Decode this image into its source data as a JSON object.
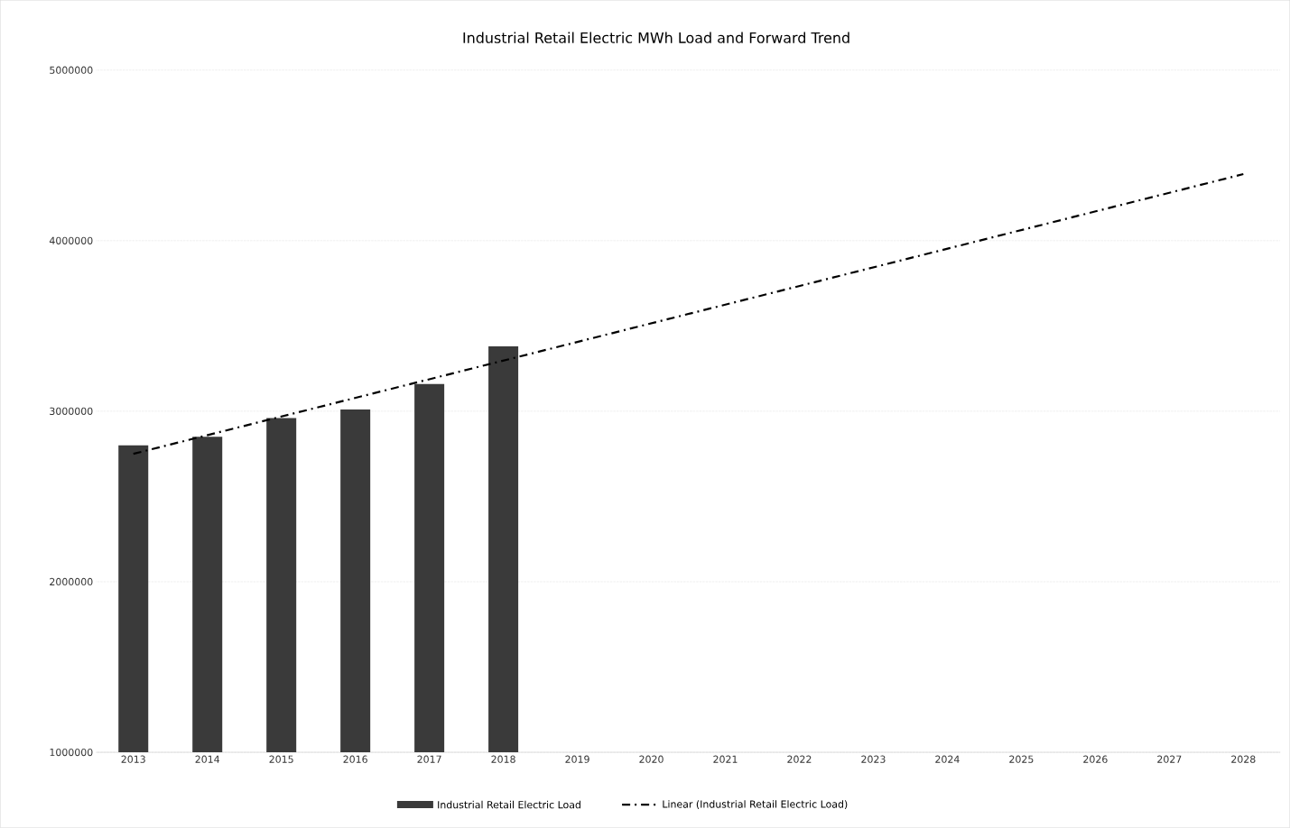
{
  "chart_data": {
    "type": "bar",
    "title": "Industrial Retail Electric MWh Load and Forward Trend",
    "series": [
      {
        "name": "Industrial Retail Electric Load",
        "color": "#3a3a3a",
        "x": [
          2013,
          2014,
          2015,
          2016,
          2017,
          2018
        ],
        "values": [
          2800000,
          2850000,
          2960000,
          3010000,
          3160000,
          3380000
        ]
      },
      {
        "name": "Linear (Industrial Retail Electric Load)",
        "type": "line",
        "color": "#000000",
        "line_style": "dashdot",
        "x": [
          2013,
          2028
        ],
        "values": [
          2750000,
          4390000
        ]
      }
    ],
    "xlim": [
      2012.5,
      2028.5
    ],
    "xticks": [
      2013,
      2014,
      2015,
      2016,
      2017,
      2018,
      2019,
      2020,
      2021,
      2022,
      2023,
      2024,
      2025,
      2026,
      2027,
      2028
    ],
    "ylim": [
      1000000,
      5000000
    ],
    "yticks": [
      1000000,
      2000000,
      3000000,
      4000000,
      5000000
    ],
    "grid": "y",
    "legend": "bottom"
  }
}
